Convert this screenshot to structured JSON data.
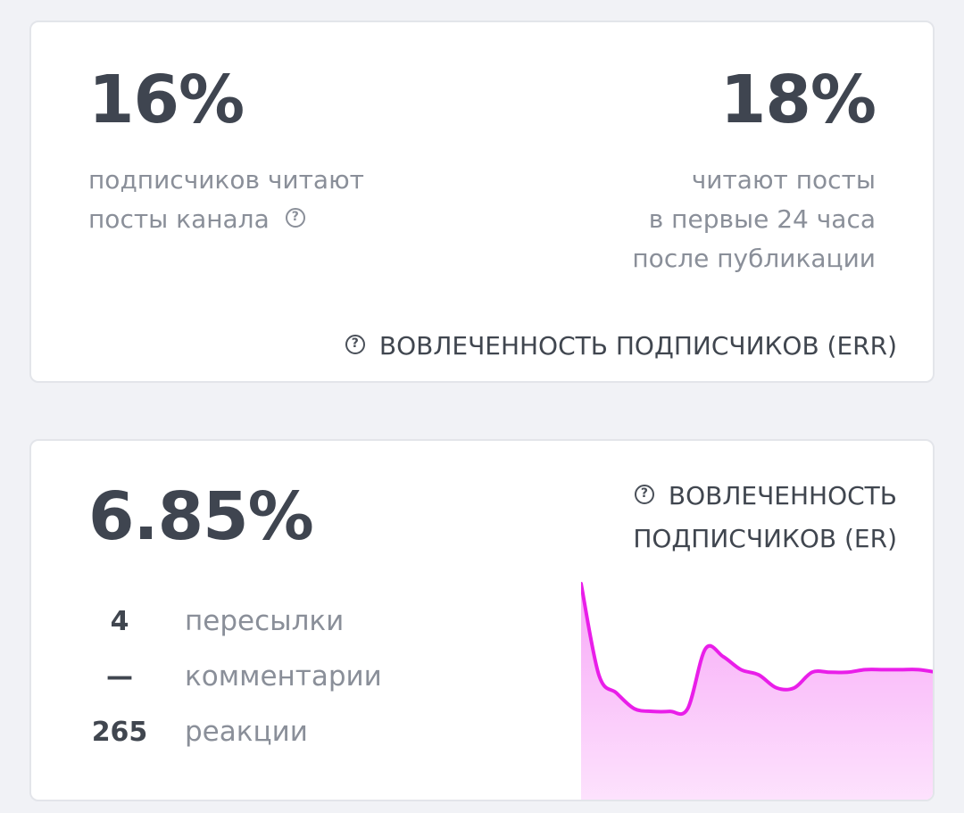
{
  "err_card": {
    "left_value": "16%",
    "left_desc_lines": [
      "подписчиков читают",
      "посты канала"
    ],
    "right_value": "18%",
    "right_desc_lines": [
      "читают посты",
      "в первые 24 часа",
      "после публикации"
    ],
    "title": "ВОВЛЕЧЕННОСТЬ ПОДПИСЧИКОВ (ERR)"
  },
  "er_card": {
    "value": "6.85%",
    "title_lines": [
      "ВОВЛЕЧЕННОСТЬ",
      "ПОДПИСЧИКОВ (ER)"
    ],
    "stats": [
      {
        "value": "4",
        "label": "пересылки"
      },
      {
        "value": "—",
        "label": "комментарии"
      },
      {
        "value": "265",
        "label": "реакции"
      }
    ]
  },
  "icons": {
    "help": "question-circle-icon"
  },
  "colors": {
    "sparkline_line": "#e91ee9",
    "sparkline_fill": "#f9b8f9"
  },
  "chart_data": {
    "type": "area",
    "title": "",
    "xlabel": "",
    "ylabel": "",
    "x": [
      0,
      1,
      2,
      3,
      4,
      5,
      6,
      7,
      8,
      9,
      10,
      11,
      12,
      13,
      14,
      15,
      16,
      17,
      18,
      19,
      20
    ],
    "series": [
      {
        "values": [
          100,
          65,
          58,
          52,
          51,
          51,
          52,
          75,
          72,
          67,
          65,
          60,
          60,
          66,
          66,
          66,
          67,
          67,
          67,
          67,
          66
        ]
      }
    ],
    "ylim": [
      0,
      100
    ],
    "grid": false,
    "legend": "none"
  }
}
